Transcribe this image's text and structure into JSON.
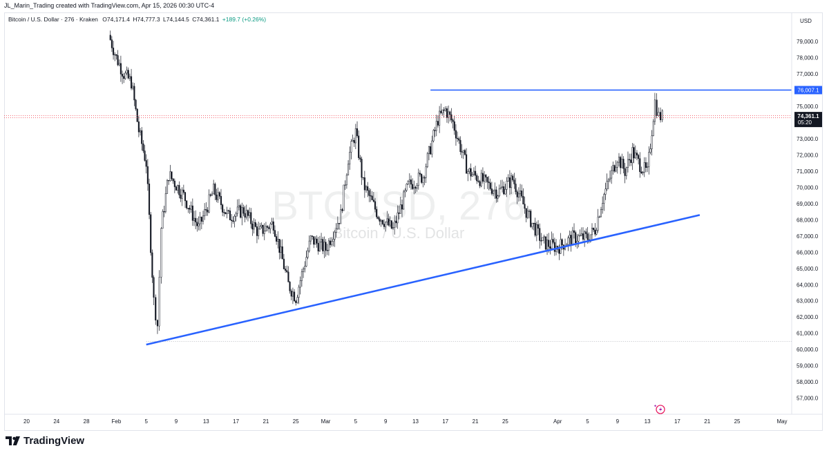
{
  "header": {
    "caption": "JL_Marin_Trading created with TradingView.com, Apr 15, 2026 00:30 UTC-4"
  },
  "legend": {
    "symbol": "Bitcoin / U.S. Dollar · 276 · Kraken",
    "open": "O74,171.4",
    "high": "H74,777.3",
    "low": "L74,144.5",
    "close": "C74,361.1",
    "change": "+189.7 (+0.26%)",
    "change_color": "#089981"
  },
  "watermark": {
    "ticker": "BTCUSD, 276",
    "name": "Bitcoin / U.S. Dollar"
  },
  "price_axis": {
    "currency": "USD",
    "labels": [
      "79,000.0",
      "78,000.0",
      "77,000.0",
      "76,000.0",
      "75,000.0",
      "73,000.0",
      "72,000.0",
      "71,000.0",
      "70,000.0",
      "69,000.0",
      "68,000.0",
      "67,000.0",
      "66,000.0",
      "65,000.0",
      "64,000.0",
      "63,000.0",
      "62,000.0",
      "61,000.0",
      "60,000.0",
      "59,000.0",
      "58,000.0",
      "57,000.0"
    ],
    "level_label": "76,007.1",
    "last_price_label": "74,361.1",
    "countdown": "05:20"
  },
  "time_axis": {
    "labels": [
      "20",
      "24",
      "28",
      "Feb",
      "5",
      "9",
      "13",
      "17",
      "21",
      "25",
      "Mar",
      "5",
      "9",
      "13",
      "17",
      "21",
      "25",
      "Apr",
      "5",
      "9",
      "13",
      "17",
      "21",
      "25",
      "May"
    ]
  },
  "colors": {
    "up": "#089981",
    "line": "#2962ff",
    "last_price": "#131722",
    "candle": "#131722",
    "candle_up_fill": "#ffffff",
    "dotted_red": "#f23645"
  },
  "footer": {
    "brand": "TradingView"
  },
  "chart_data": {
    "type": "candlestick",
    "symbol": "BTCUSD",
    "timeframe": "276",
    "ylim": [
      56000,
      80800
    ],
    "x_range": [
      "2026-01-17",
      "2026-05-01"
    ],
    "close_path": [
      [
        "2026-01-31",
        79400
      ],
      [
        "2026-02-01",
        78000
      ],
      [
        "2026-02-02",
        77000
      ],
      [
        "2026-02-03",
        76500
      ],
      [
        "2026-02-04",
        73500
      ],
      [
        "2026-02-05",
        71500
      ],
      [
        "2026-02-06",
        63000
      ],
      [
        "2026-02-06b",
        61500
      ],
      [
        "2026-02-07",
        67500
      ],
      [
        "2026-02-08",
        70800
      ],
      [
        "2026-02-10",
        69500
      ],
      [
        "2026-02-12",
        67500
      ],
      [
        "2026-02-14",
        69800
      ],
      [
        "2026-02-16",
        68200
      ],
      [
        "2026-02-18",
        68600
      ],
      [
        "2026-02-20",
        67200
      ],
      [
        "2026-02-22",
        67800
      ],
      [
        "2026-02-24",
        64000
      ],
      [
        "2026-02-25",
        63200
      ],
      [
        "2026-02-27",
        66800
      ],
      [
        "2026-03-01",
        66200
      ],
      [
        "2026-03-03",
        68300
      ],
      [
        "2026-03-04",
        71800
      ],
      [
        "2026-03-05",
        73400
      ],
      [
        "2026-03-06",
        70200
      ],
      [
        "2026-03-08",
        68300
      ],
      [
        "2026-03-10",
        67400
      ],
      [
        "2026-03-12",
        70100
      ],
      [
        "2026-03-14",
        70700
      ],
      [
        "2026-03-16",
        74200
      ],
      [
        "2026-03-17",
        74800
      ],
      [
        "2026-03-18",
        74000
      ],
      [
        "2026-03-20",
        71000
      ],
      [
        "2026-03-22",
        70400
      ],
      [
        "2026-03-24",
        69700
      ],
      [
        "2026-03-26",
        70500
      ],
      [
        "2026-03-28",
        68300
      ],
      [
        "2026-03-30",
        66600
      ],
      [
        "2026-04-01",
        66300
      ],
      [
        "2026-04-03",
        66900
      ],
      [
        "2026-04-05",
        66900
      ],
      [
        "2026-04-06",
        67400
      ],
      [
        "2026-04-07",
        69300
      ],
      [
        "2026-04-08",
        70600
      ],
      [
        "2026-04-09",
        71900
      ],
      [
        "2026-04-10",
        71000
      ],
      [
        "2026-04-11",
        72200
      ],
      [
        "2026-04-12",
        71400
      ],
      [
        "2026-04-13",
        70900
      ],
      [
        "2026-04-14",
        75300
      ],
      [
        "2026-04-14b",
        74400
      ],
      [
        "2026-04-15",
        74361.1
      ]
    ],
    "annotations": [
      {
        "type": "horizontal_ray",
        "value": 76007.1,
        "from": "2026-03-15"
      },
      {
        "type": "trend_line",
        "from": [
          "2026-02-05",
          60300
        ],
        "to": [
          "2026-04-20",
          68300
        ]
      },
      {
        "type": "horizontal_level",
        "value": 60500,
        "style": "dotted"
      }
    ],
    "last_price": 74361.1,
    "ohlc": {
      "open": 74171.4,
      "high": 74777.3,
      "low": 74144.5,
      "close": 74361.1,
      "change": 189.7,
      "change_pct": 0.26
    },
    "grid": false
  }
}
